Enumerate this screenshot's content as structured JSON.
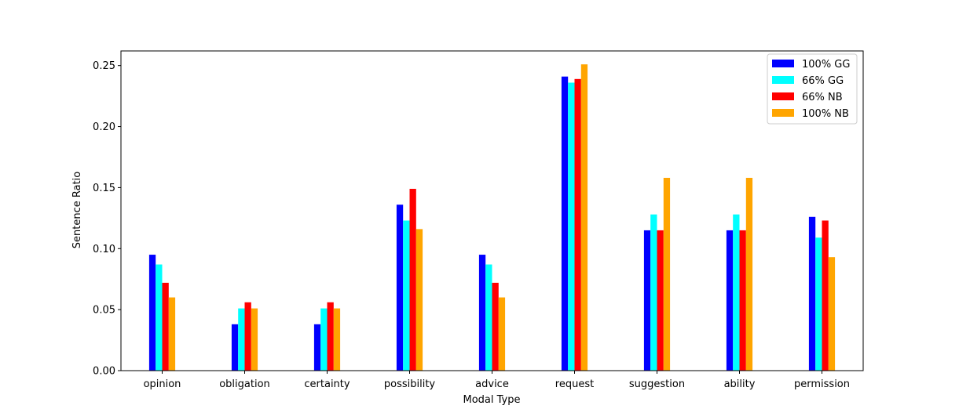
{
  "chart_data": {
    "type": "bar",
    "title": "",
    "xlabel": "Modal Type",
    "ylabel": "Sentence Ratio",
    "ylim": [
      0,
      0.262
    ],
    "yticks": [
      0.0,
      0.05,
      0.1,
      0.15,
      0.2,
      0.25
    ],
    "ytick_labels": [
      "0.00",
      "0.05",
      "0.10",
      "0.15",
      "0.20",
      "0.25"
    ],
    "grid": false,
    "legend_position": "top-right",
    "categories": [
      "opinion",
      "obligation",
      "certainty",
      "possibility",
      "advice",
      "request",
      "suggestion",
      "ability",
      "permission"
    ],
    "series": [
      {
        "name": "100% GG",
        "color": "#0000ff",
        "values": [
          0.095,
          0.038,
          0.038,
          0.136,
          0.095,
          0.241,
          0.115,
          0.115,
          0.126
        ]
      },
      {
        "name": "66% GG",
        "color": "#00ffff",
        "values": [
          0.087,
          0.051,
          0.051,
          0.123,
          0.087,
          0.236,
          0.128,
          0.128,
          0.109
        ]
      },
      {
        "name": "66% NB",
        "color": "#ff0000",
        "values": [
          0.072,
          0.056,
          0.056,
          0.149,
          0.072,
          0.239,
          0.115,
          0.115,
          0.123
        ]
      },
      {
        "name": "100% NB",
        "color": "#ffa500",
        "values": [
          0.06,
          0.051,
          0.051,
          0.116,
          0.06,
          0.251,
          0.158,
          0.158,
          0.093
        ]
      }
    ]
  }
}
